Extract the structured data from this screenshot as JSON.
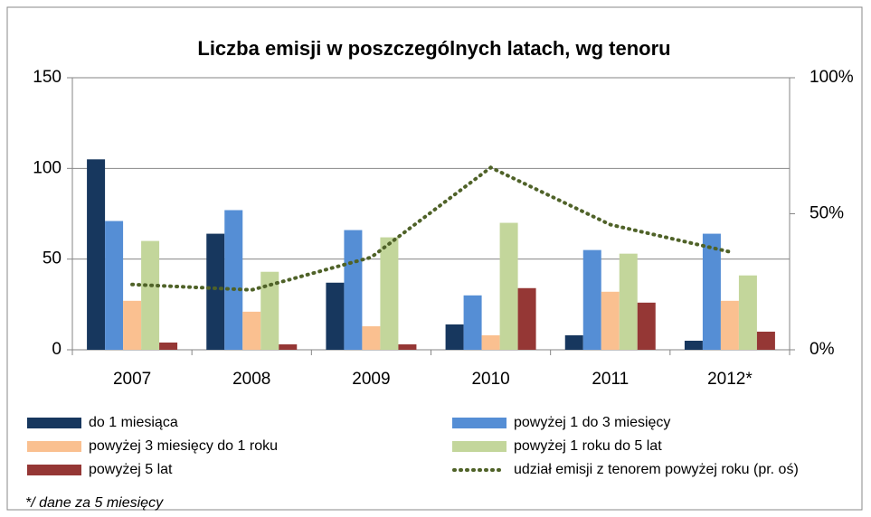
{
  "chart_data": {
    "type": "bar",
    "title": "Liczba emisji w poszczególnych latach, wg tenoru",
    "categories": [
      "2007",
      "2008",
      "2009",
      "2010",
      "2011",
      "2012*"
    ],
    "series": [
      {
        "name": "do 1 miesiąca",
        "color": "#17375e",
        "values": [
          105,
          64,
          37,
          14,
          8,
          5
        ]
      },
      {
        "name": "powyżej 1 do 3 miesięcy",
        "color": "#558ed5",
        "values": [
          71,
          77,
          66,
          30,
          55,
          64
        ]
      },
      {
        "name": "powyżej 3 miesięcy do 1 roku",
        "color": "#fac090",
        "values": [
          27,
          21,
          13,
          8,
          32,
          27
        ]
      },
      {
        "name": "powyżej 1 roku do 5 lat",
        "color": "#c3d69b",
        "values": [
          60,
          43,
          62,
          70,
          53,
          41
        ]
      },
      {
        "name": "powyżej 5 lat",
        "color": "#953735",
        "values": [
          4,
          3,
          3,
          34,
          26,
          10
        ]
      },
      {
        "name": "udział emisji z tenorem powyżej roku (pr. oś)",
        "color": "#4f6228",
        "type": "line",
        "axis": "y2",
        "values": [
          24,
          22,
          34,
          67,
          46,
          36
        ]
      }
    ],
    "ylim": [
      0,
      150
    ],
    "yticks": [
      0,
      50,
      100,
      150
    ],
    "y2lim": [
      0,
      100
    ],
    "y2ticks": [
      {
        "value": 0,
        "label": "0%"
      },
      {
        "value": 50,
        "label": "50%"
      },
      {
        "value": 100,
        "label": "100%"
      }
    ],
    "grid": true,
    "legend": "bottom",
    "note": "*/ dane  za 5 miesięcy"
  }
}
